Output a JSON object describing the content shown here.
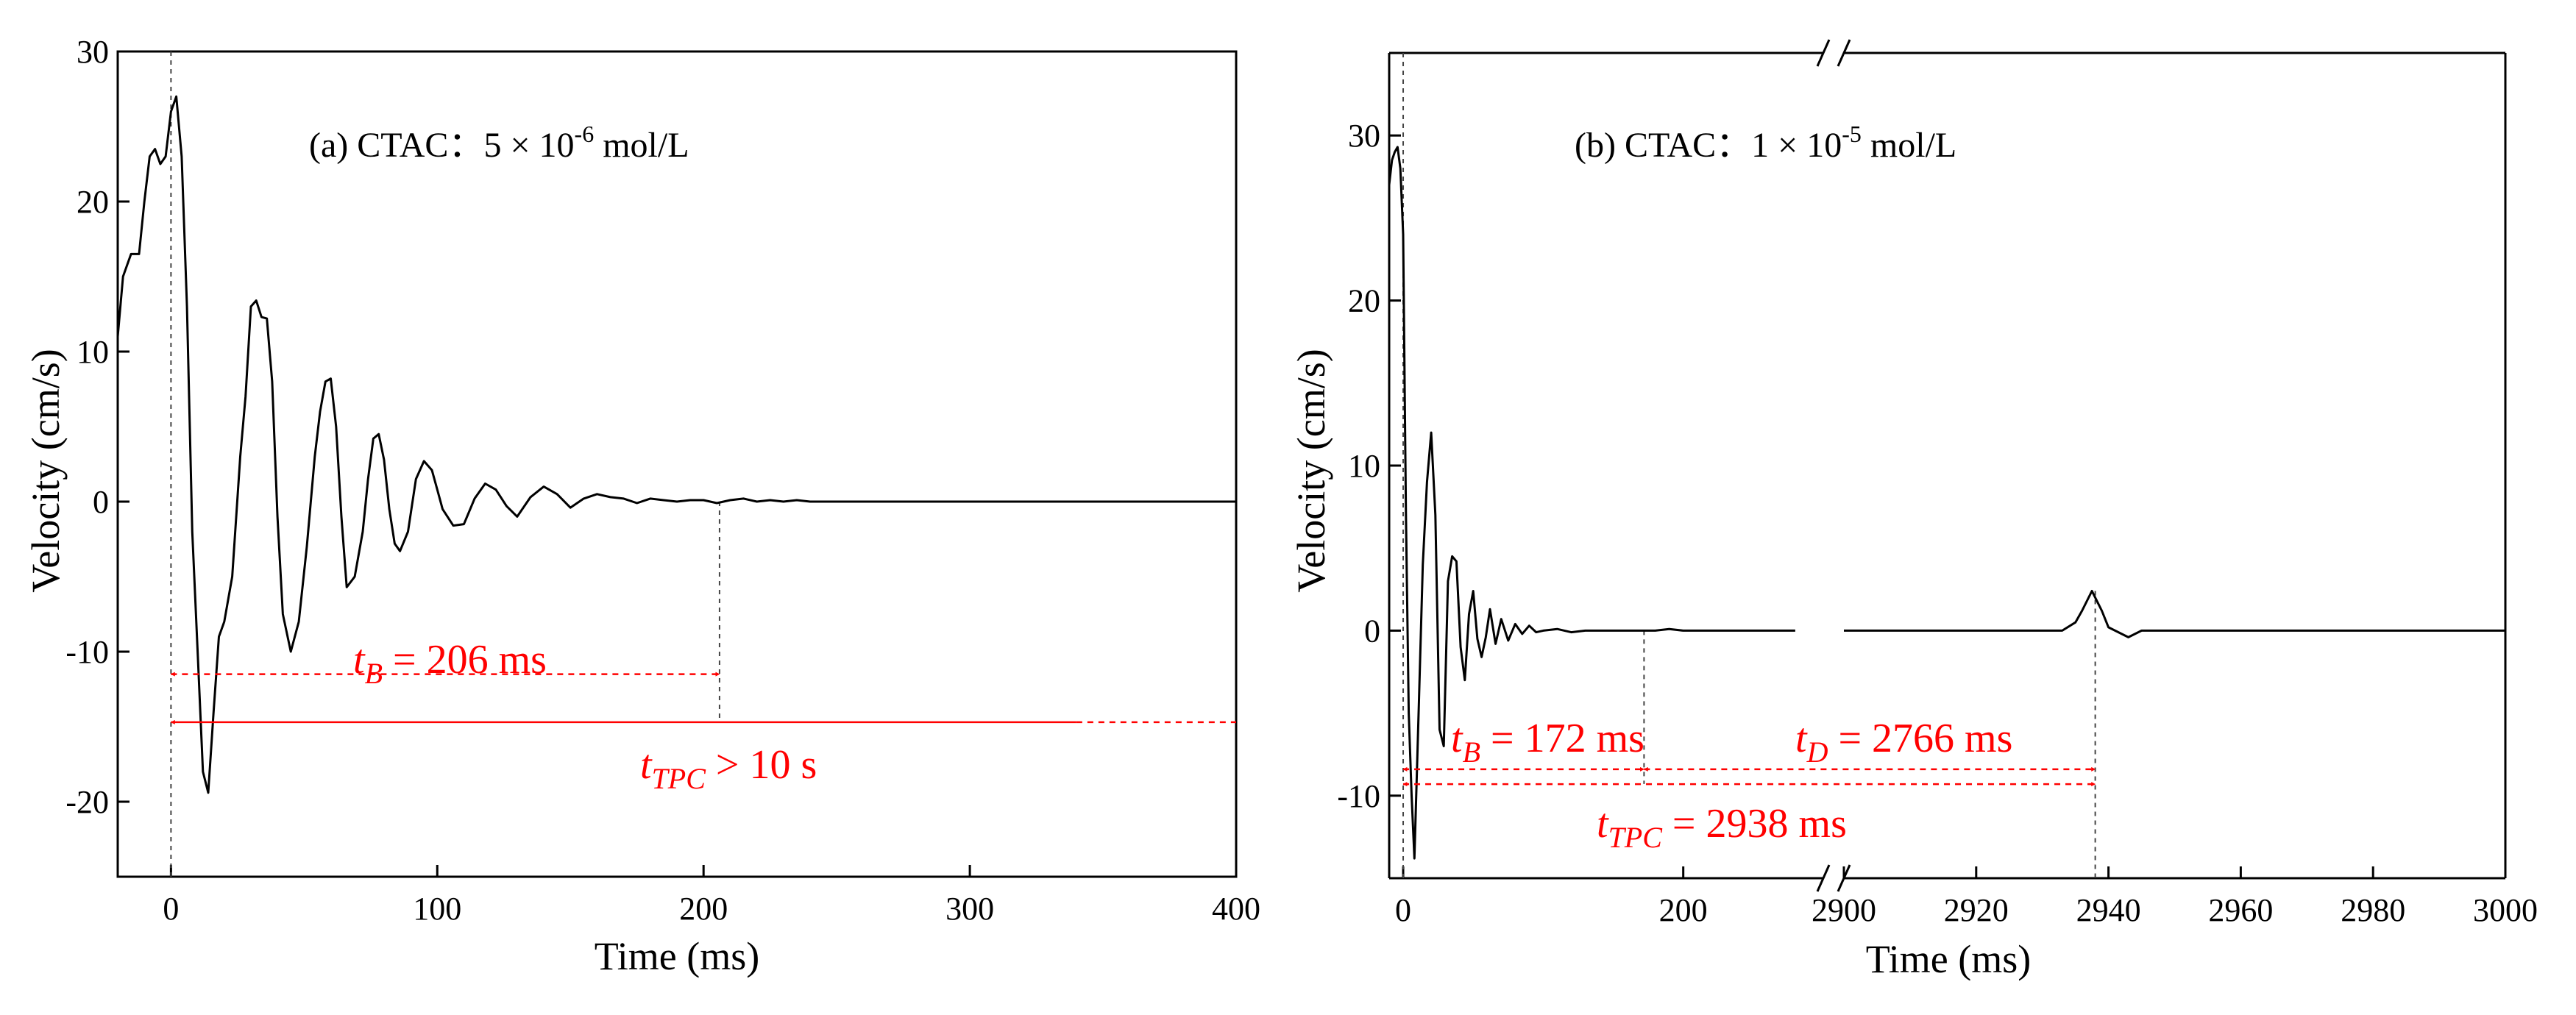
{
  "chart_data": [
    {
      "type": "line",
      "title": "(a) CTAC：5 × 10-6 mol/L",
      "title_parts": {
        "prefix": "(a) CTAC：",
        "mantissa": "5 × 10",
        "exponent": "-6",
        "unit": " mol/L"
      },
      "xlabel": "Time (ms)",
      "ylabel": "Velocity (cm/s)",
      "xlim": [
        -20,
        400
      ],
      "ylim": [
        -25,
        30
      ],
      "xticks": [
        0,
        100,
        200,
        300,
        400
      ],
      "yticks": [
        30,
        20,
        10,
        0,
        -10,
        -20
      ],
      "grid": false,
      "series": [
        {
          "x": [
            -20,
            -18,
            -15,
            -12,
            -10,
            -8,
            -6,
            -4,
            -2,
            0,
            2,
            4,
            6,
            8,
            10,
            12,
            14,
            16,
            18,
            20,
            23,
            26,
            28,
            30,
            32,
            34,
            36,
            38,
            40,
            42,
            45,
            48,
            51,
            54,
            56,
            58,
            60,
            62,
            64,
            66,
            69,
            72,
            74,
            76,
            78,
            80,
            82,
            84,
            86,
            89,
            92,
            95,
            98,
            100,
            102,
            106,
            110,
            114,
            118,
            122,
            126,
            130,
            135,
            140,
            145,
            150,
            155,
            160,
            165,
            170,
            175,
            180,
            185,
            190,
            195,
            200,
            205,
            210,
            215,
            220,
            225,
            230,
            235,
            240,
            250,
            260,
            270,
            280,
            290,
            300,
            310,
            320,
            330,
            340,
            350,
            360,
            370,
            380,
            390,
            400
          ],
          "y": [
            11,
            15,
            16.5,
            16.5,
            20,
            23,
            23.5,
            22.5,
            23,
            26,
            27,
            23,
            13,
            -2,
            -10,
            -18,
            -19.4,
            -14,
            -9,
            -8,
            -5,
            3,
            7,
            13,
            13.4,
            12.3,
            12.2,
            8,
            -1,
            -7.5,
            -10,
            -8,
            -3,
            3,
            6,
            8,
            8.2,
            5,
            -1,
            -5.7,
            -5,
            -2,
            1.5,
            4.2,
            4.5,
            2.8,
            -0.5,
            -2.8,
            -3.3,
            -2,
            1.5,
            2.7,
            2.1,
            0.8,
            -0.5,
            -1.6,
            -1.5,
            0.2,
            1.2,
            0.8,
            -0.3,
            -1,
            0.3,
            1,
            0.5,
            -0.4,
            0.2,
            0.5,
            0.3,
            0.2,
            -0.1,
            0.2,
            0.1,
            0,
            0.1,
            0.1,
            -0.1,
            0.1,
            0.2,
            0,
            0.1,
            0,
            0.1,
            0,
            0,
            0,
            0,
            0,
            0,
            0,
            0,
            0,
            0,
            0,
            0,
            0,
            0,
            0,
            0,
            0
          ]
        }
      ],
      "annotations": [
        {
          "label_main": "t",
          "label_sub": "B",
          "label_rest": " = 206 ms",
          "from": 0,
          "to": 206,
          "y": -11.5,
          "style": "dashed"
        },
        {
          "label_main": "t",
          "label_sub": "TPC",
          "label_rest": " > 10 s",
          "from": 0,
          "to": 400,
          "y": -14.7,
          "style": "solid"
        }
      ]
    },
    {
      "type": "line",
      "title": "(b) CTAC：1 × 10-5 mol/L",
      "title_parts": {
        "prefix": "(b) CTAC：",
        "mantissa": "1 × 10",
        "exponent": "-5",
        "unit": " mol/L"
      },
      "xlabel": "Time (ms)",
      "ylabel": "Velocity (cm/s)",
      "xlim_segment1": [
        -10,
        300
      ],
      "xlim_segment2": [
        2900,
        3000
      ],
      "axis_break": true,
      "ylim": [
        -15,
        35
      ],
      "xticks": [
        0,
        200,
        2900,
        2920,
        2940,
        2960,
        2980,
        3000
      ],
      "yticks": [
        30,
        20,
        10,
        0,
        -10
      ],
      "grid": false,
      "series": [
        {
          "x": [
            -10,
            -8,
            -6,
            -4,
            -2,
            0,
            2,
            4,
            6,
            8,
            11,
            14,
            17,
            20,
            23,
            26,
            29,
            32,
            35,
            38,
            41,
            44,
            47,
            50,
            53,
            56,
            59,
            62,
            66,
            70,
            75,
            80,
            85,
            90,
            95,
            100,
            110,
            120,
            130,
            140,
            150,
            160,
            170,
            180,
            190,
            200,
            210,
            220,
            230,
            240,
            250,
            260,
            270,
            280
          ],
          "y": [
            27,
            28.5,
            29,
            29.3,
            28,
            24,
            7,
            -5,
            -10,
            -13.8,
            -5,
            4,
            9,
            12,
            7,
            -6,
            -7,
            3,
            4.5,
            4.2,
            -1,
            -3,
            1,
            2.4,
            -0.5,
            -1.6,
            -0.4,
            1.3,
            -0.8,
            0.7,
            -0.6,
            0.4,
            -0.2,
            0.3,
            -0.1,
            0,
            0.1,
            -0.1,
            0,
            0,
            0,
            0,
            0,
            0,
            0.1,
            0,
            0,
            0,
            0,
            0,
            0,
            0,
            0,
            0
          ]
        },
        {
          "x": [
            2900,
            2910,
            2920,
            2930,
            2933,
            2935,
            2936,
            2937.5,
            2939,
            2940,
            2941,
            2943,
            2945,
            2950,
            2960,
            2970,
            2980,
            2990,
            3000
          ],
          "y": [
            0,
            0,
            0,
            0,
            0,
            0.5,
            1.2,
            2.4,
            1.2,
            0.2,
            0,
            -0.4,
            0,
            0,
            0,
            0,
            0,
            0,
            0
          ]
        }
      ],
      "annotations": [
        {
          "label_main": "t",
          "label_sub": "B",
          "label_rest": " = 172 ms",
          "from": 0,
          "to": 172,
          "y": -8.4,
          "style": "dashed"
        },
        {
          "label_main": "t",
          "label_sub": "D",
          "label_rest": " = 2766 ms",
          "from": 172,
          "to": 2938,
          "y": -8.4,
          "style": "dashed"
        },
        {
          "label_main": "t",
          "label_sub": "TPC",
          "label_rest": " = 2938 ms",
          "from": 0,
          "to": 2938,
          "y": -9.3,
          "style": "dashed"
        }
      ]
    }
  ]
}
